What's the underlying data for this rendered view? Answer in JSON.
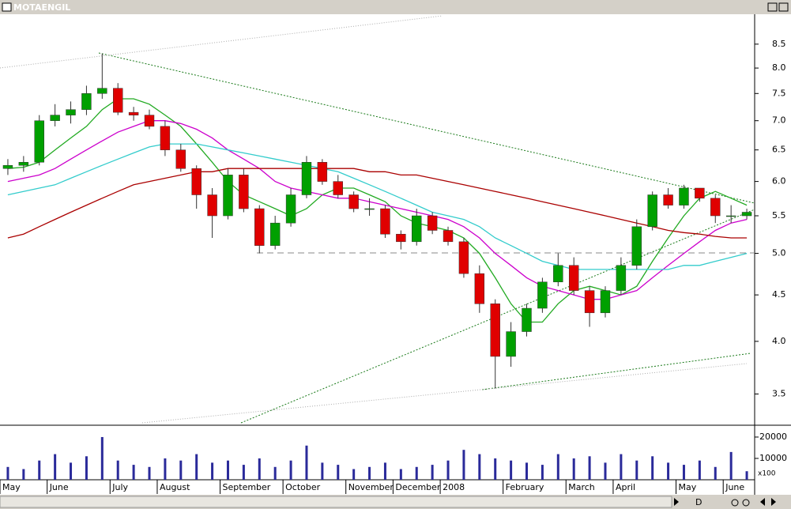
{
  "window": {
    "title": "MOTAENGIL",
    "toolbar_label": "D"
  },
  "chart_data": [
    {
      "type": "candlestick",
      "log_scale": true,
      "ylim": [
        3.24,
        9.17
      ],
      "yticks": [
        3.5,
        {
          "value": 4,
          "label": "4.0"
        },
        4.5,
        {
          "value": 5,
          "label": "5.0"
        },
        5.5,
        {
          "value": 6,
          "label": "6.0"
        },
        6.5,
        {
          "value": 7,
          "label": "7.0"
        },
        7.5,
        {
          "value": 8,
          "label": "8.0"
        },
        8.5
      ],
      "up_color": "#00a000",
      "down_color": "#e00000",
      "open": [
        6.2,
        6.25,
        6.3,
        7.0,
        7.1,
        7.2,
        7.5,
        7.6,
        7.15,
        7.1,
        6.9,
        6.5,
        6.2,
        5.8,
        5.5,
        6.1,
        5.6,
        5.1,
        5.4,
        5.8,
        6.3,
        6.0,
        5.8,
        5.6,
        5.6,
        5.25,
        5.15,
        5.5,
        5.3,
        5.15,
        4.75,
        4.4,
        3.85,
        4.1,
        4.35,
        4.65,
        4.85,
        4.55,
        4.3,
        4.55,
        4.85,
        5.35,
        5.8,
        5.65,
        5.9,
        5.75,
        5.5,
        5.5
      ],
      "high": [
        6.35,
        6.4,
        7.1,
        7.3,
        7.35,
        7.65,
        8.3,
        7.7,
        7.25,
        7.2,
        7.0,
        6.6,
        6.25,
        5.9,
        6.2,
        6.2,
        5.65,
        5.5,
        5.9,
        6.4,
        6.35,
        6.1,
        5.85,
        5.75,
        5.65,
        5.3,
        5.6,
        5.55,
        5.35,
        5.2,
        4.85,
        4.45,
        4.2,
        4.4,
        4.7,
        5.0,
        4.95,
        4.6,
        4.6,
        4.95,
        5.45,
        5.85,
        5.9,
        5.95,
        5.9,
        5.8,
        5.65,
        5.6
      ],
      "low": [
        6.1,
        6.15,
        6.25,
        6.9,
        6.95,
        7.1,
        7.4,
        7.1,
        7.0,
        6.85,
        6.4,
        6.15,
        5.6,
        5.2,
        5.45,
        5.55,
        5.0,
        5.05,
        5.35,
        5.75,
        5.95,
        5.75,
        5.55,
        5.5,
        5.2,
        5.05,
        5.1,
        5.25,
        5.1,
        4.7,
        4.3,
        3.55,
        3.75,
        4.05,
        4.3,
        4.6,
        4.5,
        4.15,
        4.25,
        4.5,
        4.8,
        5.3,
        5.6,
        5.6,
        5.7,
        5.4,
        5.4,
        5.45
      ],
      "close": [
        6.25,
        6.3,
        7.0,
        7.1,
        7.2,
        7.5,
        7.6,
        7.15,
        7.1,
        6.9,
        6.5,
        6.2,
        5.8,
        5.5,
        6.1,
        5.6,
        5.1,
        5.4,
        5.8,
        6.3,
        6.0,
        5.8,
        5.6,
        5.6,
        5.25,
        5.15,
        5.5,
        5.3,
        5.15,
        4.75,
        4.4,
        3.85,
        4.1,
        4.35,
        4.65,
        4.85,
        4.55,
        4.3,
        4.55,
        4.85,
        5.35,
        5.8,
        5.65,
        5.9,
        5.75,
        5.5,
        5.5,
        5.55
      ],
      "lines": [
        {
          "color": "#22aa22",
          "values": [
            6.2,
            6.22,
            6.3,
            6.5,
            6.7,
            6.9,
            7.2,
            7.4,
            7.4,
            7.3,
            7.1,
            6.9,
            6.6,
            6.3,
            6.0,
            5.8,
            5.7,
            5.6,
            5.5,
            5.6,
            5.8,
            5.9,
            5.9,
            5.8,
            5.7,
            5.5,
            5.4,
            5.35,
            5.3,
            5.2,
            5.0,
            4.7,
            4.4,
            4.2,
            4.2,
            4.4,
            4.55,
            4.6,
            4.55,
            4.5,
            4.6,
            4.9,
            5.2,
            5.5,
            5.75,
            5.85,
            5.75,
            5.65
          ]
        },
        {
          "color": "#cc00cc",
          "values": [
            6.0,
            6.05,
            6.1,
            6.2,
            6.35,
            6.5,
            6.65,
            6.8,
            6.9,
            7.0,
            7.0,
            6.95,
            6.85,
            6.7,
            6.5,
            6.35,
            6.2,
            6.0,
            5.9,
            5.85,
            5.8,
            5.75,
            5.75,
            5.7,
            5.65,
            5.6,
            5.55,
            5.5,
            5.45,
            5.35,
            5.2,
            5.0,
            4.85,
            4.7,
            4.6,
            4.55,
            4.5,
            4.45,
            4.45,
            4.5,
            4.55,
            4.7,
            4.85,
            5.0,
            5.15,
            5.3,
            5.4,
            5.45
          ]
        },
        {
          "color": "#33cccc",
          "values": [
            5.8,
            5.85,
            5.9,
            5.95,
            6.05,
            6.15,
            6.25,
            6.35,
            6.45,
            6.55,
            6.6,
            6.6,
            6.6,
            6.55,
            6.5,
            6.45,
            6.4,
            6.35,
            6.3,
            6.25,
            6.2,
            6.15,
            6.05,
            5.95,
            5.85,
            5.75,
            5.65,
            5.55,
            5.5,
            5.45,
            5.35,
            5.2,
            5.1,
            5.0,
            4.9,
            4.85,
            4.8,
            4.8,
            4.8,
            4.8,
            4.8,
            4.8,
            4.8,
            4.85,
            4.85,
            4.9,
            4.95,
            5.0
          ]
        },
        {
          "color": "#aa0000",
          "values": [
            5.2,
            5.25,
            5.35,
            5.45,
            5.55,
            5.65,
            5.75,
            5.85,
            5.95,
            6.0,
            6.05,
            6.1,
            6.15,
            6.15,
            6.2,
            6.2,
            6.2,
            6.2,
            6.2,
            6.2,
            6.2,
            6.2,
            6.2,
            6.15,
            6.15,
            6.1,
            6.1,
            6.05,
            6.0,
            5.95,
            5.9,
            5.85,
            5.8,
            5.75,
            5.7,
            5.65,
            5.6,
            5.55,
            5.5,
            5.45,
            5.4,
            5.35,
            5.3,
            5.27,
            5.25,
            5.22,
            5.2,
            5.2
          ]
        }
      ]
    },
    {
      "type": "bar",
      "color": "#2a2a9a",
      "ylim": [
        0,
        24800
      ],
      "yticks": [
        10000,
        20000
      ],
      "unit_label": "x100",
      "categories": [
        "May",
        null,
        null,
        "June",
        null,
        null,
        null,
        "July",
        null,
        null,
        "August",
        null,
        null,
        null,
        "September",
        null,
        null,
        null,
        "October",
        null,
        null,
        null,
        "November",
        null,
        null,
        "December",
        null,
        null,
        "2008",
        null,
        null,
        null,
        "February",
        null,
        null,
        null,
        "March",
        null,
        null,
        "April",
        null,
        null,
        null,
        "May",
        null,
        null,
        "June",
        null
      ],
      "values": [
        6000,
        5000,
        9000,
        12000,
        8000,
        11000,
        20000,
        9000,
        7000,
        6000,
        10000,
        9000,
        12000,
        8000,
        9000,
        7000,
        10000,
        6000,
        9000,
        16000,
        8000,
        7000,
        5000,
        6000,
        8000,
        5000,
        6000,
        7000,
        9000,
        14000,
        12000,
        10000,
        9000,
        8000,
        7000,
        12000,
        10000,
        11000,
        8000,
        12000,
        9000,
        11000,
        8000,
        7000,
        9000,
        6000,
        13000,
        4000
      ]
    }
  ]
}
